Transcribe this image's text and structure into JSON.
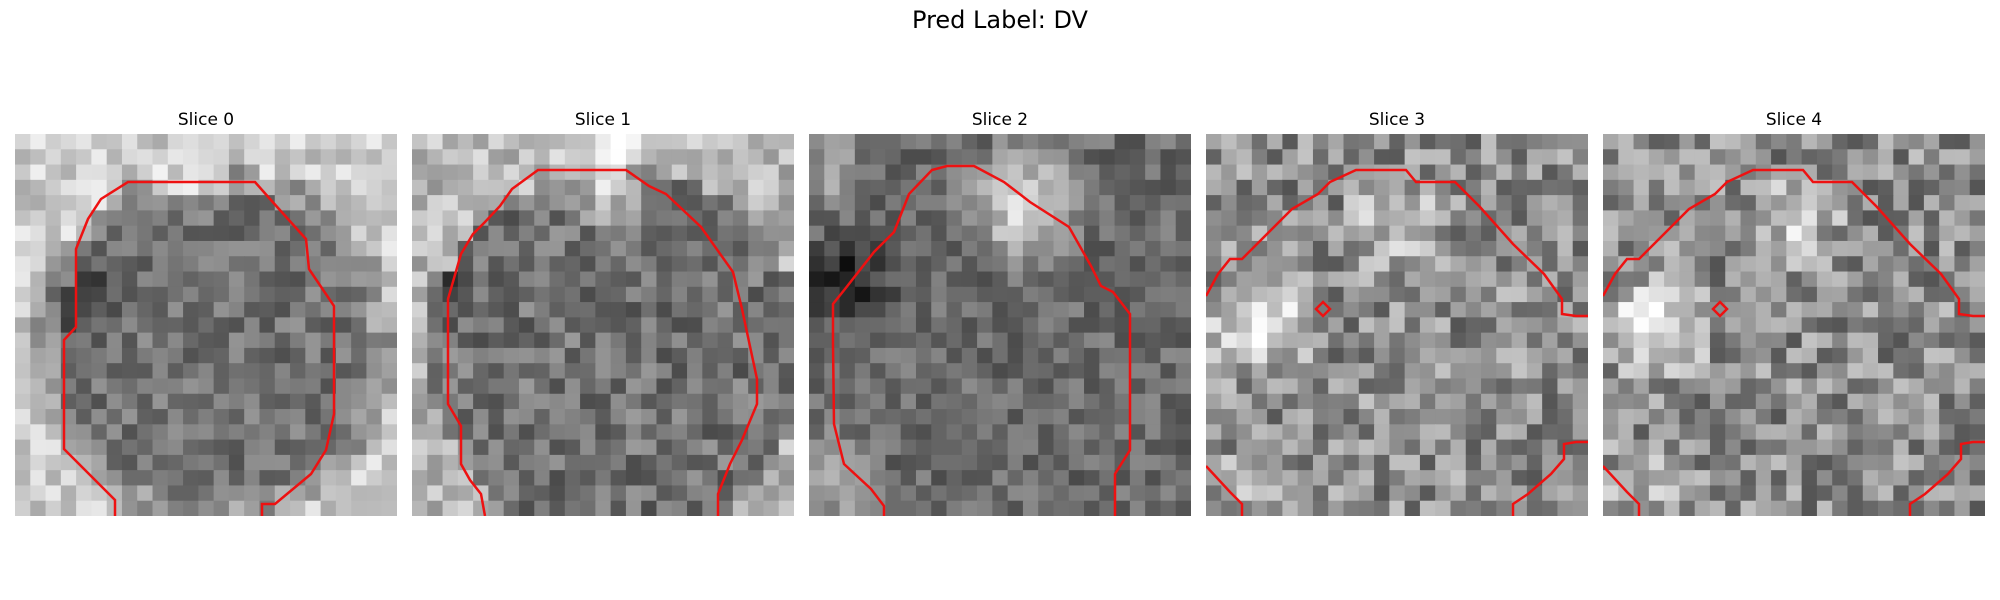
{
  "figure": {
    "title": "Pred Label: DV",
    "contour_color": "#ee1111"
  },
  "slices": [
    {
      "title": "Slice 0"
    },
    {
      "title": "Slice 1"
    },
    {
      "title": "Slice 2"
    },
    {
      "title": "Slice 3"
    },
    {
      "title": "Slice 4"
    }
  ]
}
